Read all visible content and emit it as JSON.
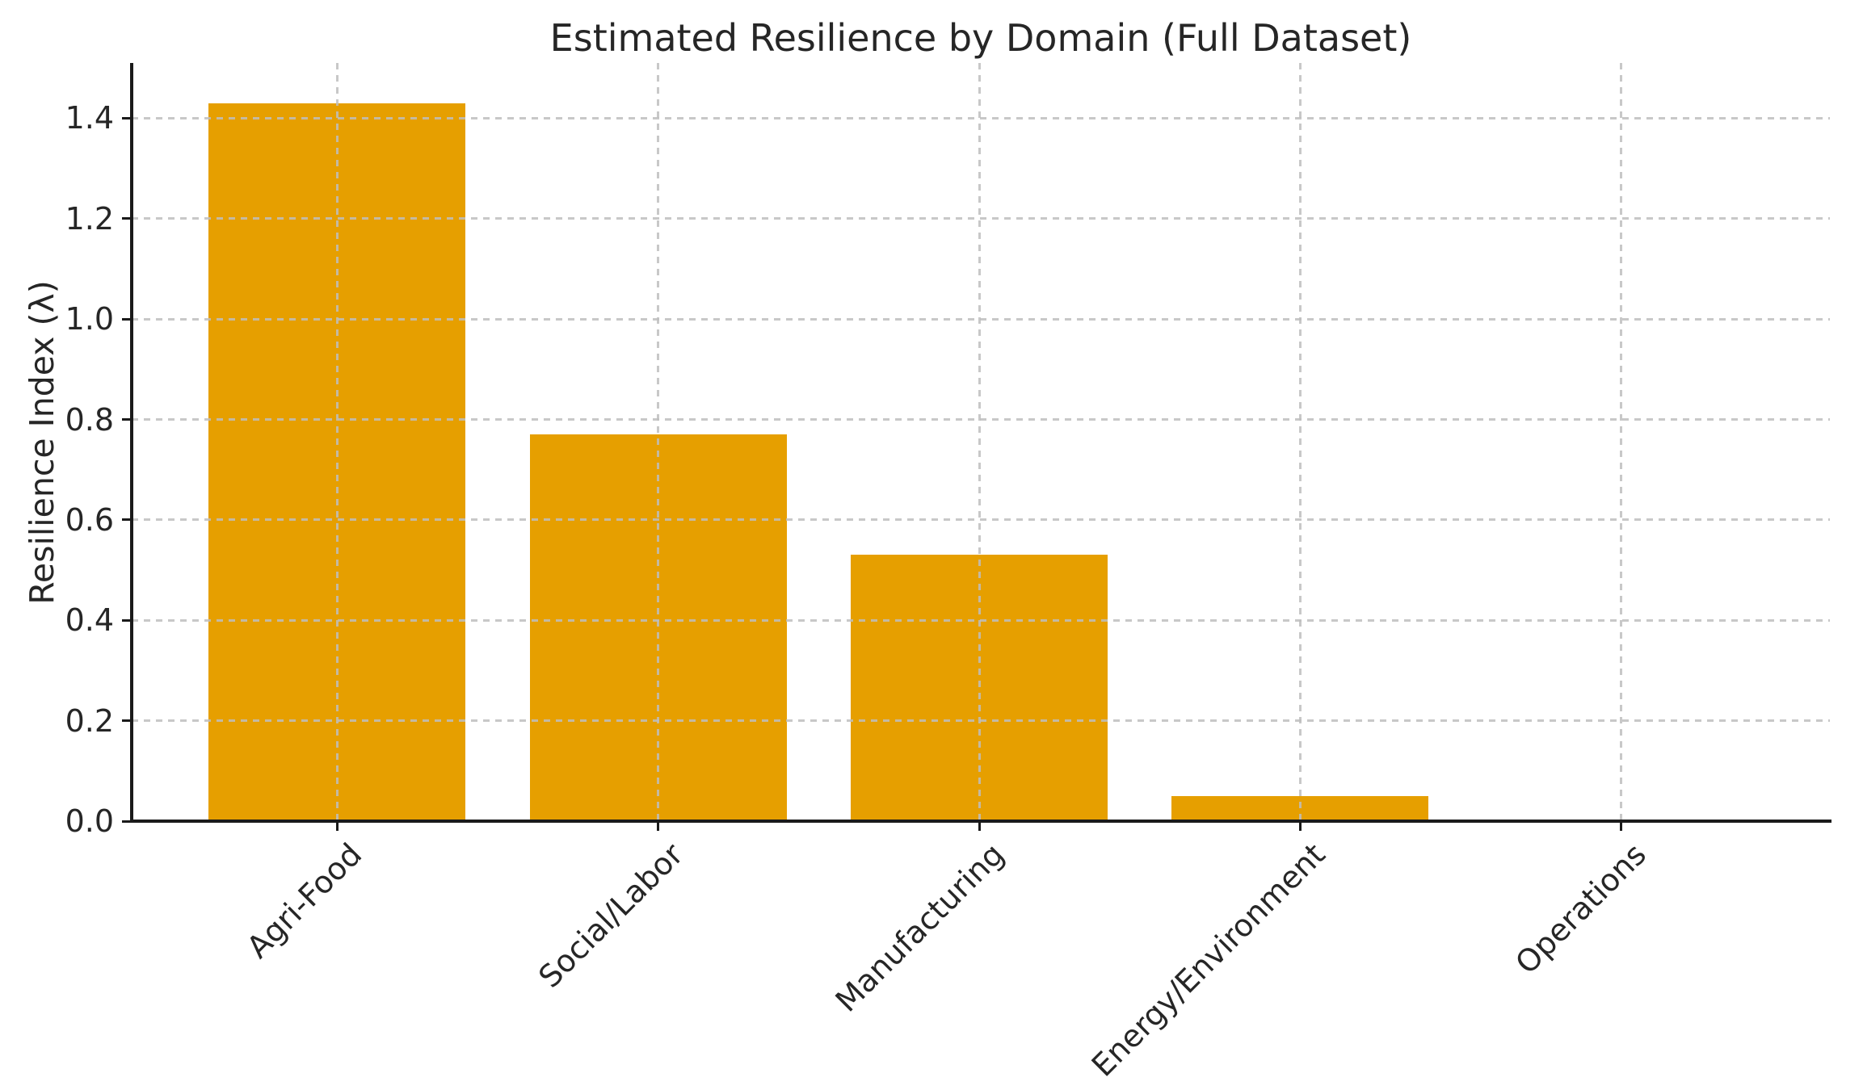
{
  "chart_data": {
    "type": "bar",
    "title": "Estimated Resilience by Domain (Full Dataset)",
    "xlabel": "",
    "ylabel": "Resilience Index (λ)",
    "categories": [
      "Agri-Food",
      "Social/Labor",
      "Manufacturing",
      "Energy/Environment",
      "Operations"
    ],
    "values": [
      1.43,
      0.77,
      0.53,
      0.05,
      0.0
    ],
    "ylim": [
      0,
      1.51
    ],
    "yticks": [
      0.0,
      0.2,
      0.4,
      0.6,
      0.8,
      1.0,
      1.2,
      1.4
    ],
    "xlim": [
      -0.64,
      4.65
    ],
    "bar_width_units": 0.8,
    "xtick_rotation_deg": 45,
    "grid": true,
    "grid_style": "dashed",
    "legend": "none",
    "bar_color": "#E69F00",
    "grid_color": "#c4c4c4",
    "spine_color": "#1a1a1a",
    "text_color": "#262626",
    "background_color": "#ffffff"
  }
}
